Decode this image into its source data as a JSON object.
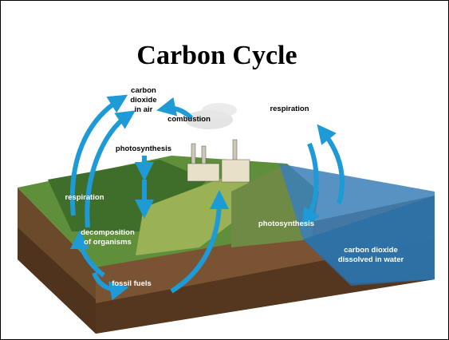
{
  "header": {
    "title": "Carbon Cycle"
  },
  "labels": [
    {
      "lines": [
        "carbon",
        "dioxide",
        "in air"
      ]
    },
    {
      "lines": [
        "combustion"
      ]
    },
    {
      "lines": [
        "respiration"
      ]
    },
    {
      "lines": [
        "photosynthesis"
      ]
    },
    {
      "lines": [
        "respiration"
      ]
    },
    {
      "lines": [
        "decomposition",
        "of organisms"
      ]
    },
    {
      "lines": [
        "photosynthesis"
      ]
    },
    {
      "lines": [
        "carbon dioxide",
        "dissolved in water"
      ]
    },
    {
      "lines": [
        "fossil fuels"
      ]
    }
  ]
}
